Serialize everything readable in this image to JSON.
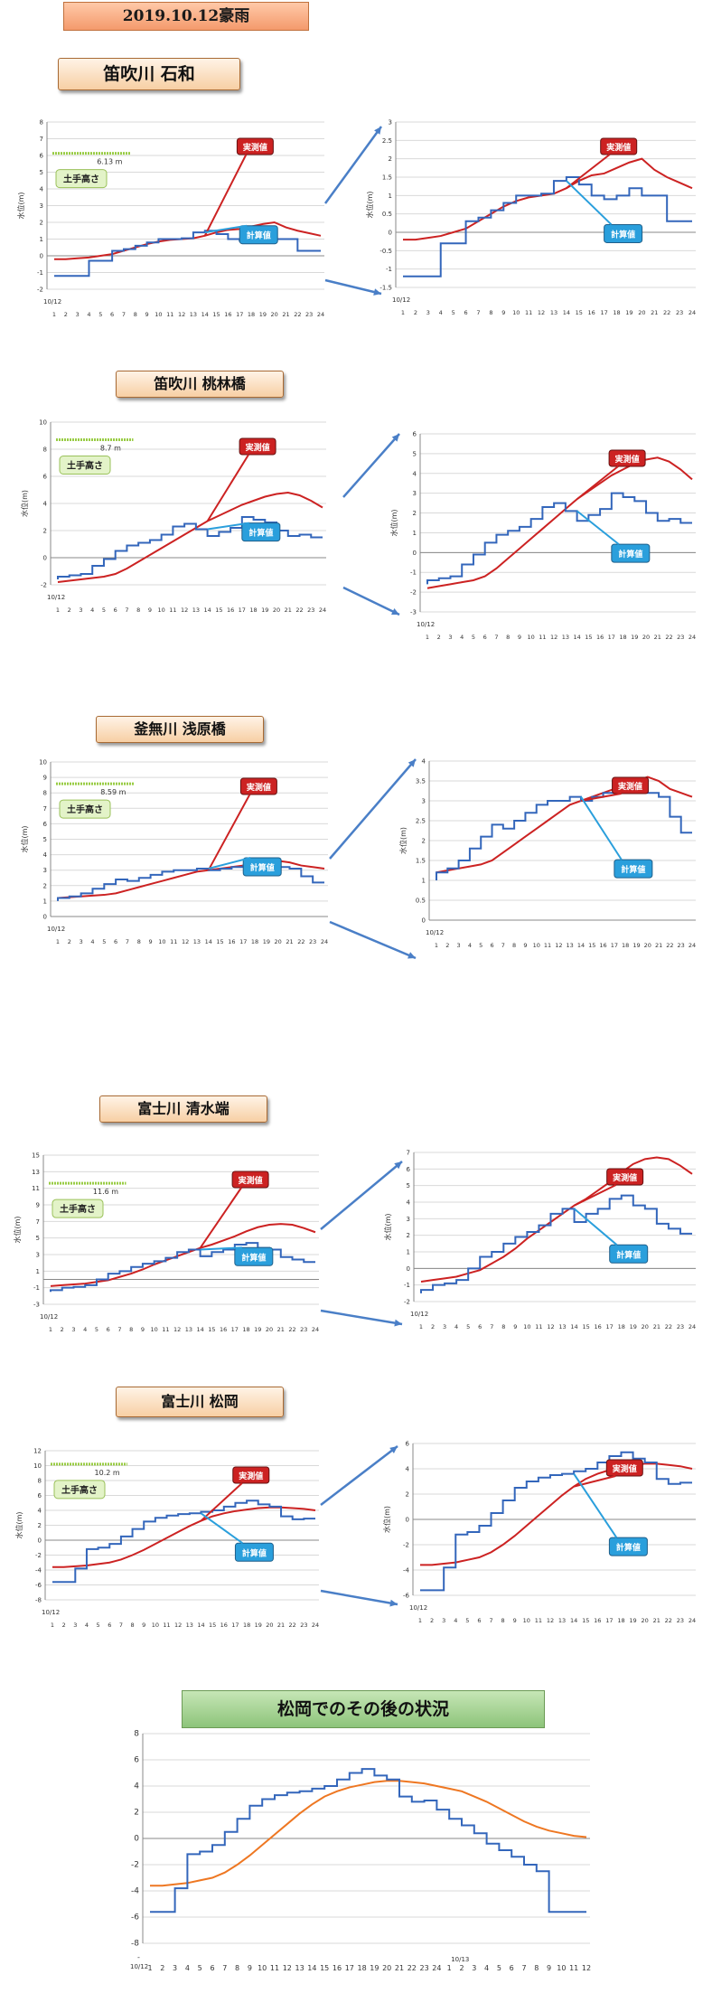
{
  "header": {
    "title": "2019.10.12豪雨"
  },
  "labels": {
    "measured": "実測値",
    "computed": "計算値",
    "levee": "土手高さ",
    "ylabel": "水位(m)",
    "date1": "10/12",
    "date2": "10/13"
  },
  "colors": {
    "measured": "#cc2222",
    "computed": "#3366bb",
    "orange": "#ee7722",
    "levee": "#99cc44"
  },
  "sections": [
    {
      "river": "笛吹川 石和",
      "levee_label": "6.13 m"
    },
    {
      "river": "笛吹川 桃林橋",
      "levee_label": "8.7 m"
    },
    {
      "river": "釜無川 浅原橋",
      "levee_label": "8.59 m"
    },
    {
      "river": "富士川 清水端",
      "levee_label": "11.6 m"
    },
    {
      "river": "富士川 松岡",
      "levee_label": "10.2 m"
    }
  ],
  "followup": {
    "title": "松岡でのその後の状況"
  },
  "chart_data": [
    {
      "type": "line",
      "x": [
        1,
        2,
        3,
        4,
        5,
        6,
        7,
        8,
        9,
        10,
        11,
        12,
        13,
        14,
        15,
        16,
        17,
        18,
        19,
        20,
        21,
        22,
        23,
        24
      ],
      "xlabel": "10/12",
      "ylabel": "水位(m)",
      "ylim": [
        -2,
        8
      ],
      "levee": 6.13,
      "series": [
        {
          "name": "実測値",
          "values": [
            -0.2,
            -0.2,
            -0.15,
            -0.1,
            0,
            0.1,
            0.3,
            0.5,
            0.7,
            0.85,
            0.95,
            1.0,
            1.05,
            1.2,
            1.4,
            1.55,
            1.6,
            1.75,
            1.9,
            2.0,
            1.7,
            1.5,
            1.35,
            1.2
          ]
        },
        {
          "name": "計算値",
          "values": [
            -1.2,
            -1.2,
            -1.2,
            -1.2,
            -0.3,
            -0.3,
            0.3,
            0.4,
            0.6,
            0.8,
            1.0,
            1.0,
            1.05,
            1.4,
            1.5,
            1.3,
            1.0,
            0.9,
            1.0,
            1.2,
            1.0,
            1.0,
            0.3,
            0.3
          ]
        }
      ]
    },
    {
      "type": "line",
      "x": [
        1,
        2,
        3,
        4,
        5,
        6,
        7,
        8,
        9,
        10,
        11,
        12,
        13,
        14,
        15,
        16,
        17,
        18,
        19,
        20,
        21,
        22,
        23,
        24
      ],
      "xlabel": "10/12",
      "ylabel": "水位(m)",
      "ylim": [
        -1.5,
        3
      ],
      "series": [
        {
          "name": "実測値",
          "values": [
            -0.2,
            -0.2,
            -0.15,
            -0.1,
            0,
            0.1,
            0.3,
            0.5,
            0.7,
            0.85,
            0.95,
            1.0,
            1.05,
            1.2,
            1.4,
            1.55,
            1.6,
            1.75,
            1.9,
            2.0,
            1.7,
            1.5,
            1.35,
            1.2
          ]
        },
        {
          "name": "計算値",
          "values": [
            -1.2,
            -1.2,
            -1.2,
            -1.2,
            -0.3,
            -0.3,
            0.3,
            0.4,
            0.6,
            0.8,
            1.0,
            1.0,
            1.05,
            1.4,
            1.5,
            1.3,
            1.0,
            0.9,
            1.0,
            1.2,
            1.0,
            1.0,
            0.3,
            0.3
          ]
        }
      ]
    },
    {
      "type": "line",
      "x": [
        1,
        2,
        3,
        4,
        5,
        6,
        7,
        8,
        9,
        10,
        11,
        12,
        13,
        14,
        15,
        16,
        17,
        18,
        19,
        20,
        21,
        22,
        23,
        24
      ],
      "xlabel": "10/12",
      "ylabel": "水位(m)",
      "ylim": [
        -2,
        10
      ],
      "levee": 8.7,
      "series": [
        {
          "name": "実測値",
          "values": [
            -1.8,
            -1.7,
            -1.6,
            -1.5,
            -1.4,
            -1.2,
            -0.8,
            -0.3,
            0.2,
            0.7,
            1.2,
            1.7,
            2.2,
            2.7,
            3.1,
            3.5,
            3.9,
            4.2,
            4.5,
            4.7,
            4.8,
            4.6,
            4.2,
            3.7
          ]
        },
        {
          "name": "計算値",
          "values": [
            -1.6,
            -1.4,
            -1.3,
            -1.2,
            -0.6,
            -0.1,
            0.5,
            0.9,
            1.1,
            1.3,
            1.7,
            2.3,
            2.5,
            2.1,
            1.6,
            1.9,
            2.2,
            3.0,
            2.8,
            2.6,
            2.0,
            1.6,
            1.7,
            1.5
          ]
        }
      ]
    },
    {
      "type": "line",
      "x": [
        1,
        2,
        3,
        4,
        5,
        6,
        7,
        8,
        9,
        10,
        11,
        12,
        13,
        14,
        15,
        16,
        17,
        18,
        19,
        20,
        21,
        22,
        23,
        24
      ],
      "xlabel": "10/12",
      "ylabel": "水位(m)",
      "ylim": [
        -3,
        6
      ],
      "series": [
        {
          "name": "実測値",
          "values": [
            -1.8,
            -1.7,
            -1.6,
            -1.5,
            -1.4,
            -1.2,
            -0.8,
            -0.3,
            0.2,
            0.7,
            1.2,
            1.7,
            2.2,
            2.7,
            3.1,
            3.5,
            3.9,
            4.2,
            4.5,
            4.7,
            4.8,
            4.6,
            4.2,
            3.7
          ]
        },
        {
          "name": "計算値",
          "values": [
            -1.6,
            -1.4,
            -1.3,
            -1.2,
            -0.6,
            -0.1,
            0.5,
            0.9,
            1.1,
            1.3,
            1.7,
            2.3,
            2.5,
            2.1,
            1.6,
            1.9,
            2.2,
            3.0,
            2.8,
            2.6,
            2.0,
            1.6,
            1.7,
            1.5
          ]
        }
      ]
    },
    {
      "type": "line",
      "x": [
        1,
        2,
        3,
        4,
        5,
        6,
        7,
        8,
        9,
        10,
        11,
        12,
        13,
        14,
        15,
        16,
        17,
        18,
        19,
        20,
        21,
        22,
        23,
        24
      ],
      "xlabel": "10/12",
      "ylabel": "水位(m)",
      "ylim": [
        0,
        10
      ],
      "levee": 8.59,
      "series": [
        {
          "name": "実測値",
          "values": [
            1.2,
            1.25,
            1.3,
            1.35,
            1.4,
            1.5,
            1.7,
            1.9,
            2.1,
            2.3,
            2.5,
            2.7,
            2.9,
            3.0,
            3.1,
            3.2,
            3.3,
            3.4,
            3.5,
            3.6,
            3.5,
            3.3,
            3.2,
            3.1
          ]
        },
        {
          "name": "計算値",
          "values": [
            1.0,
            1.2,
            1.3,
            1.5,
            1.8,
            2.1,
            2.4,
            2.3,
            2.5,
            2.7,
            2.9,
            3.0,
            3.0,
            3.1,
            3.0,
            3.1,
            3.2,
            3.3,
            3.4,
            3.3,
            3.2,
            3.1,
            2.6,
            2.2
          ]
        }
      ]
    },
    {
      "type": "line",
      "x": [
        1,
        2,
        3,
        4,
        5,
        6,
        7,
        8,
        9,
        10,
        11,
        12,
        13,
        14,
        15,
        16,
        17,
        18,
        19,
        20,
        21,
        22,
        23,
        24
      ],
      "xlabel": "10/12",
      "ylabel": "水位(m)",
      "ylim": [
        0,
        4
      ],
      "series": [
        {
          "name": "実測値",
          "values": [
            1.2,
            1.25,
            1.3,
            1.35,
            1.4,
            1.5,
            1.7,
            1.9,
            2.1,
            2.3,
            2.5,
            2.7,
            2.9,
            3.0,
            3.1,
            3.2,
            3.3,
            3.4,
            3.5,
            3.6,
            3.5,
            3.3,
            3.2,
            3.1
          ]
        },
        {
          "name": "計算値",
          "values": [
            1.0,
            1.2,
            1.3,
            1.5,
            1.8,
            2.1,
            2.4,
            2.3,
            2.5,
            2.7,
            2.9,
            3.0,
            3.0,
            3.1,
            3.0,
            3.1,
            3.2,
            3.3,
            3.4,
            3.3,
            3.2,
            3.1,
            2.6,
            2.2
          ]
        }
      ]
    },
    {
      "type": "line",
      "x": [
        1,
        2,
        3,
        4,
        5,
        6,
        7,
        8,
        9,
        10,
        11,
        12,
        13,
        14,
        15,
        16,
        17,
        18,
        19,
        20,
        21,
        22,
        23,
        24
      ],
      "xlabel": "10/12",
      "ylabel": "水位(m)",
      "ylim": [
        -3,
        15
      ],
      "levee": 11.6,
      "series": [
        {
          "name": "実測値",
          "values": [
            -0.8,
            -0.7,
            -0.6,
            -0.5,
            -0.3,
            -0.1,
            0.3,
            0.7,
            1.2,
            1.8,
            2.3,
            2.8,
            3.3,
            3.8,
            4.2,
            4.7,
            5.2,
            5.8,
            6.3,
            6.6,
            6.7,
            6.6,
            6.2,
            5.7
          ]
        },
        {
          "name": "計算値",
          "values": [
            -1.5,
            -1.3,
            -1.0,
            -0.9,
            -0.7,
            0,
            0.7,
            1.0,
            1.5,
            1.9,
            2.2,
            2.6,
            3.3,
            3.6,
            2.8,
            3.3,
            3.6,
            4.2,
            4.4,
            3.8,
            3.6,
            2.7,
            2.4,
            2.1
          ]
        }
      ]
    },
    {
      "type": "line",
      "x": [
        1,
        2,
        3,
        4,
        5,
        6,
        7,
        8,
        9,
        10,
        11,
        12,
        13,
        14,
        15,
        16,
        17,
        18,
        19,
        20,
        21,
        22,
        23,
        24
      ],
      "xlabel": "10/12",
      "ylabel": "水位(m)",
      "ylim": [
        -2,
        7
      ],
      "series": [
        {
          "name": "実測値",
          "values": [
            -0.8,
            -0.7,
            -0.6,
            -0.5,
            -0.3,
            -0.1,
            0.3,
            0.7,
            1.2,
            1.8,
            2.3,
            2.8,
            3.3,
            3.8,
            4.2,
            4.7,
            5.2,
            5.8,
            6.3,
            6.6,
            6.7,
            6.6,
            6.2,
            5.7
          ]
        },
        {
          "name": "計算値",
          "values": [
            -1.5,
            -1.3,
            -1.0,
            -0.9,
            -0.7,
            0,
            0.7,
            1.0,
            1.5,
            1.9,
            2.2,
            2.6,
            3.3,
            3.6,
            2.8,
            3.3,
            3.6,
            4.2,
            4.4,
            3.8,
            3.6,
            2.7,
            2.4,
            2.1
          ]
        }
      ]
    },
    {
      "type": "line",
      "x": [
        1,
        2,
        3,
        4,
        5,
        6,
        7,
        8,
        9,
        10,
        11,
        12,
        13,
        14,
        15,
        16,
        17,
        18,
        19,
        20,
        21,
        22,
        23,
        24
      ],
      "xlabel": "10/12",
      "ylabel": "水位(m)",
      "ylim": [
        -8,
        12
      ],
      "levee": 10.2,
      "series": [
        {
          "name": "実測値",
          "values": [
            -3.6,
            -3.6,
            -3.5,
            -3.4,
            -3.2,
            -3.0,
            -2.6,
            -2.0,
            -1.3,
            -0.5,
            0.3,
            1.1,
            1.9,
            2.6,
            3.2,
            3.6,
            3.9,
            4.1,
            4.3,
            4.4,
            4.4,
            4.3,
            4.2,
            4.0
          ]
        },
        {
          "name": "計算値",
          "values": [
            -5.6,
            -5.6,
            -5.6,
            -3.8,
            -1.2,
            -1.0,
            -0.5,
            0.5,
            1.5,
            2.5,
            3.0,
            3.3,
            3.5,
            3.6,
            3.8,
            4.0,
            4.5,
            5.0,
            5.3,
            4.8,
            4.5,
            3.2,
            2.8,
            2.9
          ]
        }
      ]
    },
    {
      "type": "line",
      "x": [
        1,
        2,
        3,
        4,
        5,
        6,
        7,
        8,
        9,
        10,
        11,
        12,
        13,
        14,
        15,
        16,
        17,
        18,
        19,
        20,
        21,
        22,
        23,
        24
      ],
      "xlabel": "10/12",
      "ylabel": "水位(m)",
      "ylim": [
        -6,
        6
      ],
      "series": [
        {
          "name": "実測値",
          "values": [
            -3.6,
            -3.6,
            -3.5,
            -3.4,
            -3.2,
            -3.0,
            -2.6,
            -2.0,
            -1.3,
            -0.5,
            0.3,
            1.1,
            1.9,
            2.6,
            3.2,
            3.6,
            3.9,
            4.1,
            4.3,
            4.4,
            4.4,
            4.3,
            4.2,
            4.0
          ]
        },
        {
          "name": "計算値",
          "values": [
            -5.6,
            -5.6,
            -5.6,
            -3.8,
            -1.2,
            -1.0,
            -0.5,
            0.5,
            1.5,
            2.5,
            3.0,
            3.3,
            3.5,
            3.6,
            3.8,
            4.0,
            4.5,
            5.0,
            5.3,
            4.8,
            4.5,
            3.2,
            2.8,
            2.9
          ]
        }
      ]
    },
    {
      "type": "line",
      "x": [
        1,
        2,
        3,
        4,
        5,
        6,
        7,
        8,
        9,
        10,
        11,
        12,
        13,
        14,
        15,
        16,
        17,
        18,
        19,
        20,
        21,
        22,
        23,
        24,
        1,
        2,
        3,
        4,
        5,
        6,
        7,
        8,
        9,
        10,
        11,
        12
      ],
      "xlabel": "",
      "ylim": [
        -8,
        8
      ],
      "series": [
        {
          "name": "",
          "values": [
            -3.6,
            -3.6,
            -3.5,
            -3.4,
            -3.2,
            -3.0,
            -2.6,
            -2.0,
            -1.3,
            -0.5,
            0.3,
            1.1,
            1.9,
            2.6,
            3.2,
            3.6,
            3.9,
            4.1,
            4.3,
            4.4,
            4.4,
            4.3,
            4.2,
            4.0,
            3.8,
            3.6,
            3.2,
            2.8,
            2.3,
            1.8,
            1.3,
            0.9,
            0.6,
            0.4,
            0.2,
            0.1
          ]
        },
        {
          "name": "",
          "values": [
            -5.6,
            -5.6,
            -5.6,
            -3.8,
            -1.2,
            -1.0,
            -0.5,
            0.5,
            1.5,
            2.5,
            3.0,
            3.3,
            3.5,
            3.6,
            3.8,
            4.0,
            4.5,
            5.0,
            5.3,
            4.8,
            4.5,
            3.2,
            2.8,
            2.9,
            2.2,
            1.5,
            1.0,
            0.4,
            -0.4,
            -0.9,
            -1.4,
            -2.0,
            -2.5,
            -5.6,
            -5.6,
            -5.6
          ]
        }
      ]
    }
  ]
}
